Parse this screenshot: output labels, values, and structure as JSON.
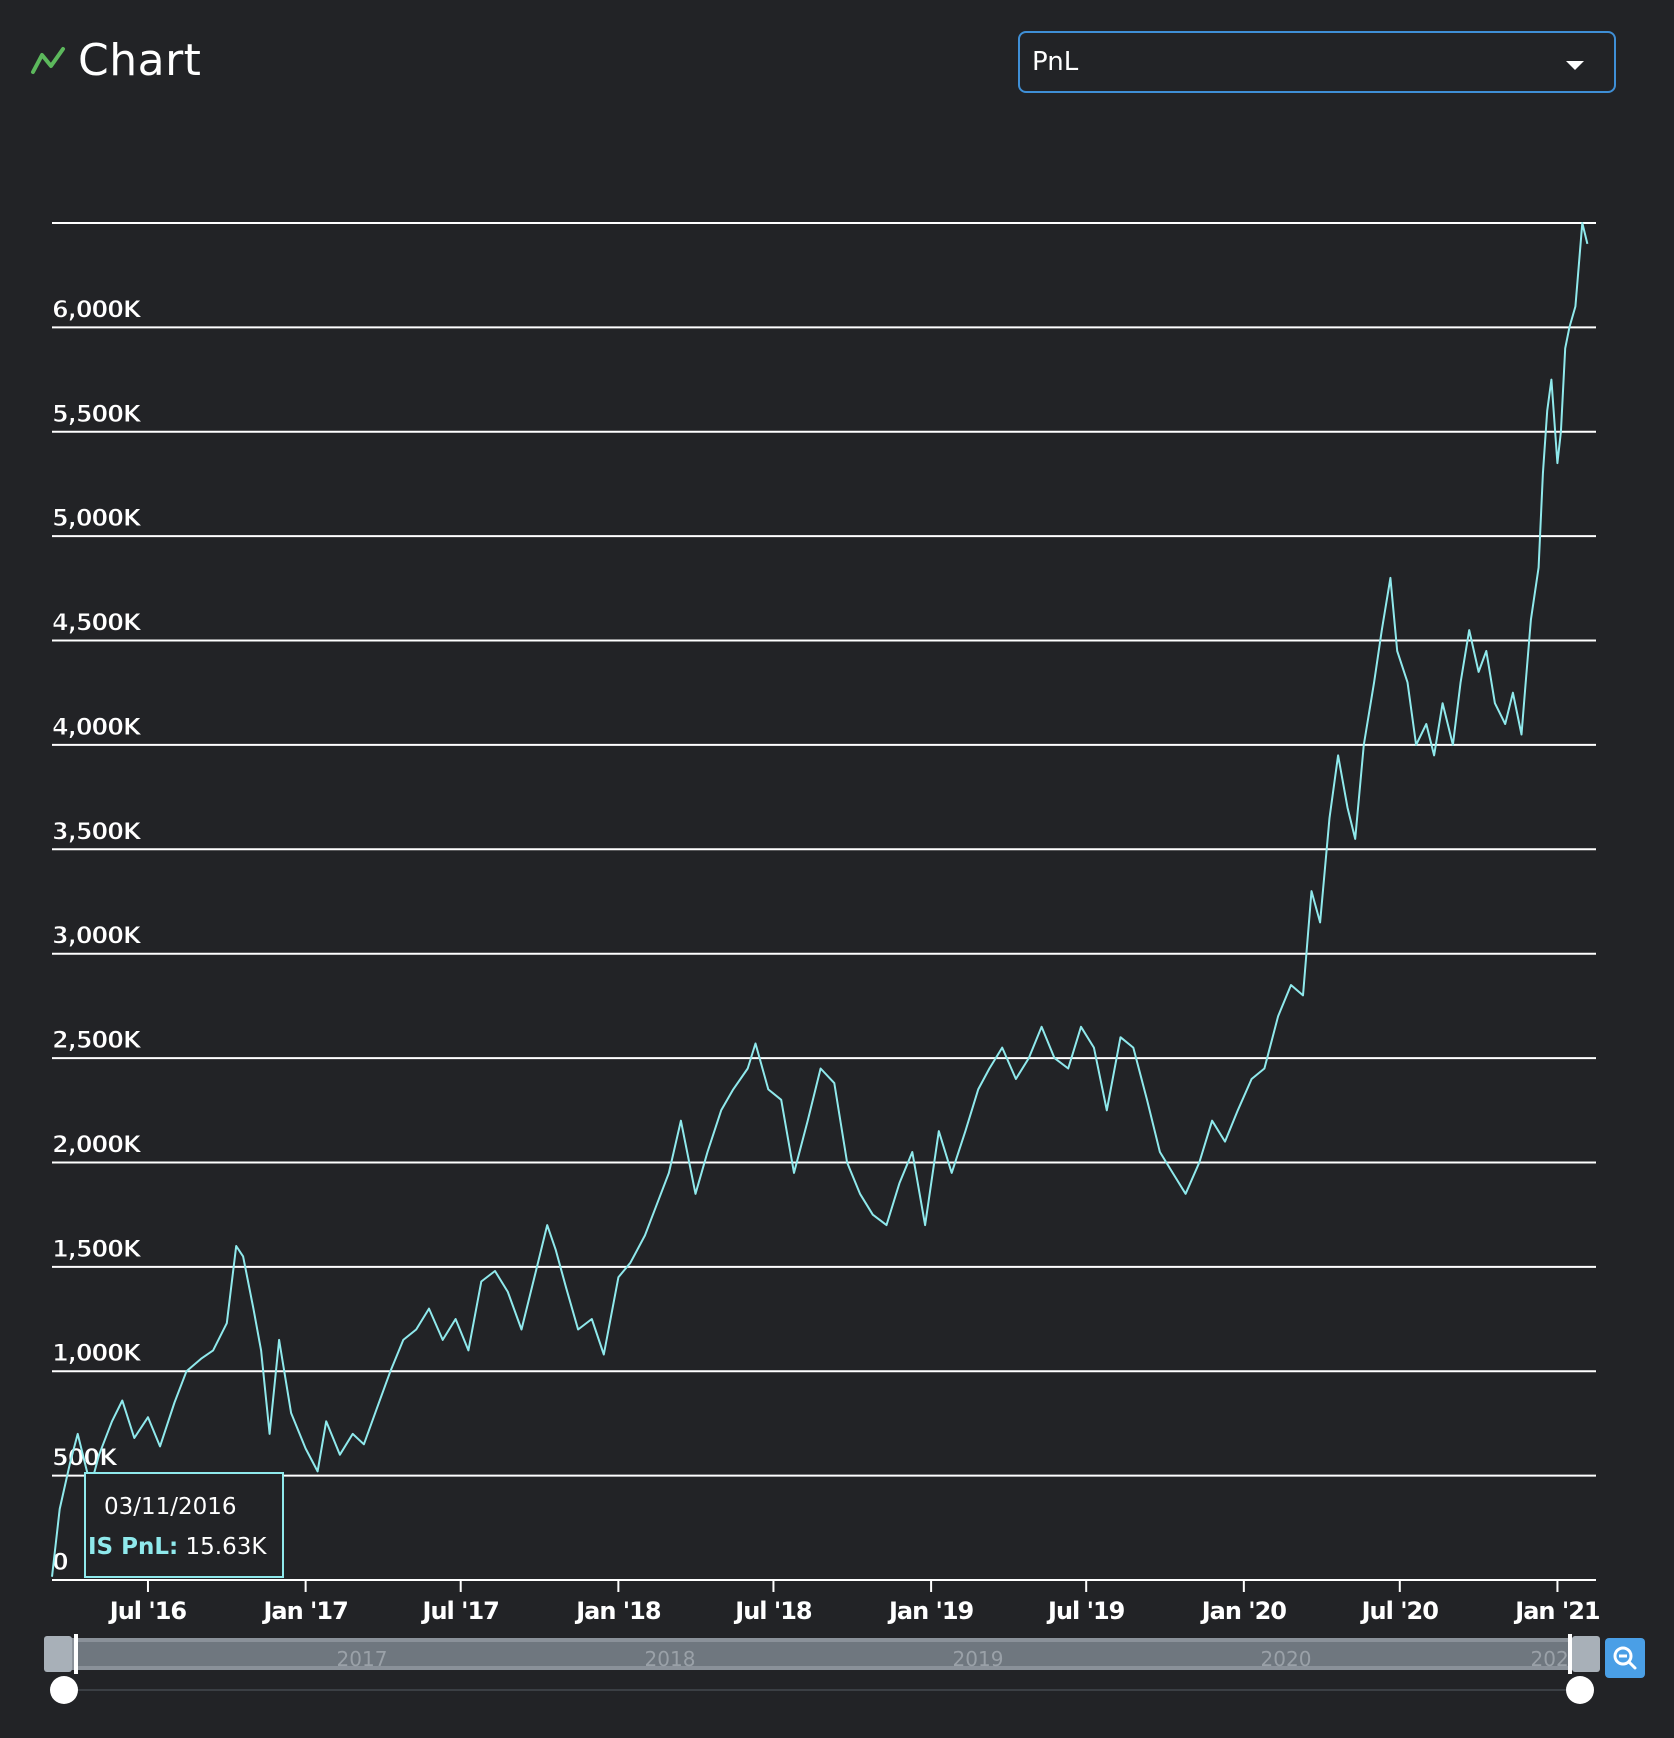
{
  "header": {
    "title": "Chart",
    "icon": "chart-line-icon"
  },
  "selector": {
    "value": "PnL"
  },
  "tooltip": {
    "date": "03/11/2016",
    "label": "IS PnL:",
    "value": "15.63K"
  },
  "colors": {
    "line": "#8fe9ec",
    "background": "#222326",
    "grid": "#ffffff",
    "accent": "#5cb85c",
    "button": "#4a9fe6"
  },
  "chart_data": {
    "type": "line",
    "title": "",
    "xlabel": "",
    "ylabel": "",
    "grid": true,
    "legend": "none",
    "ylim": [
      0,
      6500
    ],
    "y_unit": "K",
    "xlim": [
      "2016-03-11",
      "2021-02-15"
    ],
    "y_ticks": [
      0,
      500,
      1000,
      1500,
      2000,
      2500,
      3000,
      3500,
      4000,
      4500,
      5000,
      5500,
      6000
    ],
    "y_tick_labels": [
      "0",
      "500K",
      "1,000K",
      "1,500K",
      "2,000K",
      "2,500K",
      "3,000K",
      "3,500K",
      "4,000K",
      "4,500K",
      "5,000K",
      "5,500K",
      "6,000K"
    ],
    "x_ticks": [
      "2016-07-01",
      "2017-01-01",
      "2017-07-01",
      "2018-01-01",
      "2018-07-01",
      "2019-01-01",
      "2019-07-01",
      "2020-01-01",
      "2020-07-01",
      "2021-01-01"
    ],
    "x_tick_labels": [
      "Jul '16",
      "Jan '17",
      "Jul '17",
      "Jan '18",
      "Jul '18",
      "Jan '19",
      "Jul '19",
      "Jan '20",
      "Jul '20",
      "Jan '21"
    ],
    "navigator_labels": [
      "2017",
      "2018",
      "2019",
      "2020",
      "2021"
    ],
    "series": [
      {
        "name": "IS PnL",
        "points": [
          [
            "2016-03-11",
            16
          ],
          [
            "2016-03-20",
            340
          ],
          [
            "2016-04-01",
            560
          ],
          [
            "2016-04-10",
            700
          ],
          [
            "2016-04-25",
            450
          ],
          [
            "2016-05-05",
            600
          ],
          [
            "2016-05-20",
            760
          ],
          [
            "2016-06-01",
            860
          ],
          [
            "2016-06-15",
            680
          ],
          [
            "2016-07-01",
            780
          ],
          [
            "2016-07-15",
            640
          ],
          [
            "2016-08-01",
            850
          ],
          [
            "2016-08-15",
            1000
          ],
          [
            "2016-09-01",
            1060
          ],
          [
            "2016-09-15",
            1100
          ],
          [
            "2016-10-01",
            1230
          ],
          [
            "2016-10-12",
            1600
          ],
          [
            "2016-10-20",
            1550
          ],
          [
            "2016-11-01",
            1300
          ],
          [
            "2016-11-10",
            1100
          ],
          [
            "2016-11-20",
            700
          ],
          [
            "2016-12-01",
            1150
          ],
          [
            "2016-12-15",
            800
          ],
          [
            "2017-01-01",
            630
          ],
          [
            "2017-01-15",
            520
          ],
          [
            "2017-01-25",
            760
          ],
          [
            "2017-02-10",
            600
          ],
          [
            "2017-02-25",
            700
          ],
          [
            "2017-03-10",
            650
          ],
          [
            "2017-03-25",
            820
          ],
          [
            "2017-04-10",
            1000
          ],
          [
            "2017-04-25",
            1150
          ],
          [
            "2017-05-10",
            1200
          ],
          [
            "2017-05-25",
            1300
          ],
          [
            "2017-06-10",
            1150
          ],
          [
            "2017-06-25",
            1250
          ],
          [
            "2017-07-10",
            1100
          ],
          [
            "2017-07-25",
            1430
          ],
          [
            "2017-08-10",
            1480
          ],
          [
            "2017-08-25",
            1380
          ],
          [
            "2017-09-10",
            1200
          ],
          [
            "2017-09-25",
            1450
          ],
          [
            "2017-10-10",
            1700
          ],
          [
            "2017-10-20",
            1580
          ],
          [
            "2017-11-01",
            1400
          ],
          [
            "2017-11-15",
            1200
          ],
          [
            "2017-12-01",
            1250
          ],
          [
            "2017-12-15",
            1080
          ],
          [
            "2018-01-01",
            1450
          ],
          [
            "2018-01-15",
            1520
          ],
          [
            "2018-02-01",
            1650
          ],
          [
            "2018-02-15",
            1800
          ],
          [
            "2018-03-01",
            1950
          ],
          [
            "2018-03-15",
            2200
          ],
          [
            "2018-04-01",
            1850
          ],
          [
            "2018-04-15",
            2050
          ],
          [
            "2018-05-01",
            2250
          ],
          [
            "2018-05-15",
            2350
          ],
          [
            "2018-06-01",
            2450
          ],
          [
            "2018-06-10",
            2570
          ],
          [
            "2018-06-25",
            2350
          ],
          [
            "2018-07-10",
            2300
          ],
          [
            "2018-07-25",
            1950
          ],
          [
            "2018-08-10",
            2200
          ],
          [
            "2018-08-25",
            2450
          ],
          [
            "2018-09-10",
            2380
          ],
          [
            "2018-09-25",
            2000
          ],
          [
            "2018-10-10",
            1850
          ],
          [
            "2018-10-25",
            1750
          ],
          [
            "2018-11-10",
            1700
          ],
          [
            "2018-11-25",
            1900
          ],
          [
            "2018-12-10",
            2050
          ],
          [
            "2018-12-25",
            1700
          ],
          [
            "2019-01-10",
            2150
          ],
          [
            "2019-01-25",
            1950
          ],
          [
            "2019-02-10",
            2150
          ],
          [
            "2019-02-25",
            2350
          ],
          [
            "2019-03-10",
            2450
          ],
          [
            "2019-03-25",
            2550
          ],
          [
            "2019-04-10",
            2400
          ],
          [
            "2019-04-25",
            2500
          ],
          [
            "2019-05-10",
            2650
          ],
          [
            "2019-05-25",
            2500
          ],
          [
            "2019-06-10",
            2450
          ],
          [
            "2019-06-25",
            2650
          ],
          [
            "2019-07-10",
            2550
          ],
          [
            "2019-07-25",
            2250
          ],
          [
            "2019-08-10",
            2600
          ],
          [
            "2019-08-25",
            2550
          ],
          [
            "2019-09-10",
            2300
          ],
          [
            "2019-09-25",
            2050
          ],
          [
            "2019-10-10",
            1950
          ],
          [
            "2019-10-25",
            1850
          ],
          [
            "2019-11-10",
            2000
          ],
          [
            "2019-11-25",
            2200
          ],
          [
            "2019-12-10",
            2100
          ],
          [
            "2019-12-25",
            2250
          ],
          [
            "2020-01-10",
            2400
          ],
          [
            "2020-01-25",
            2450
          ],
          [
            "2020-02-10",
            2700
          ],
          [
            "2020-02-25",
            2850
          ],
          [
            "2020-03-10",
            2800
          ],
          [
            "2020-03-20",
            3300
          ],
          [
            "2020-03-30",
            3150
          ],
          [
            "2020-04-10",
            3650
          ],
          [
            "2020-04-20",
            3950
          ],
          [
            "2020-05-01",
            3700
          ],
          [
            "2020-05-10",
            3550
          ],
          [
            "2020-05-20",
            4000
          ],
          [
            "2020-06-01",
            4300
          ],
          [
            "2020-06-10",
            4550
          ],
          [
            "2020-06-20",
            4800
          ],
          [
            "2020-06-28",
            4450
          ],
          [
            "2020-07-10",
            4300
          ],
          [
            "2020-07-20",
            4000
          ],
          [
            "2020-08-01",
            4100
          ],
          [
            "2020-08-10",
            3950
          ],
          [
            "2020-08-20",
            4200
          ],
          [
            "2020-09-01",
            4000
          ],
          [
            "2020-09-10",
            4300
          ],
          [
            "2020-09-20",
            4550
          ],
          [
            "2020-10-01",
            4350
          ],
          [
            "2020-10-10",
            4450
          ],
          [
            "2020-10-20",
            4200
          ],
          [
            "2020-11-01",
            4100
          ],
          [
            "2020-11-10",
            4250
          ],
          [
            "2020-11-20",
            4050
          ],
          [
            "2020-11-25",
            4300
          ],
          [
            "2020-12-01",
            4600
          ],
          [
            "2020-12-10",
            4850
          ],
          [
            "2020-12-15",
            5300
          ],
          [
            "2020-12-20",
            5600
          ],
          [
            "2020-12-25",
            5750
          ],
          [
            "2021-01-01",
            5350
          ],
          [
            "2021-01-05",
            5500
          ],
          [
            "2021-01-10",
            5900
          ],
          [
            "2021-01-15",
            6000
          ],
          [
            "2021-01-22",
            6100
          ],
          [
            "2021-01-30",
            6500
          ],
          [
            "2021-02-05",
            6400
          ]
        ]
      }
    ]
  }
}
